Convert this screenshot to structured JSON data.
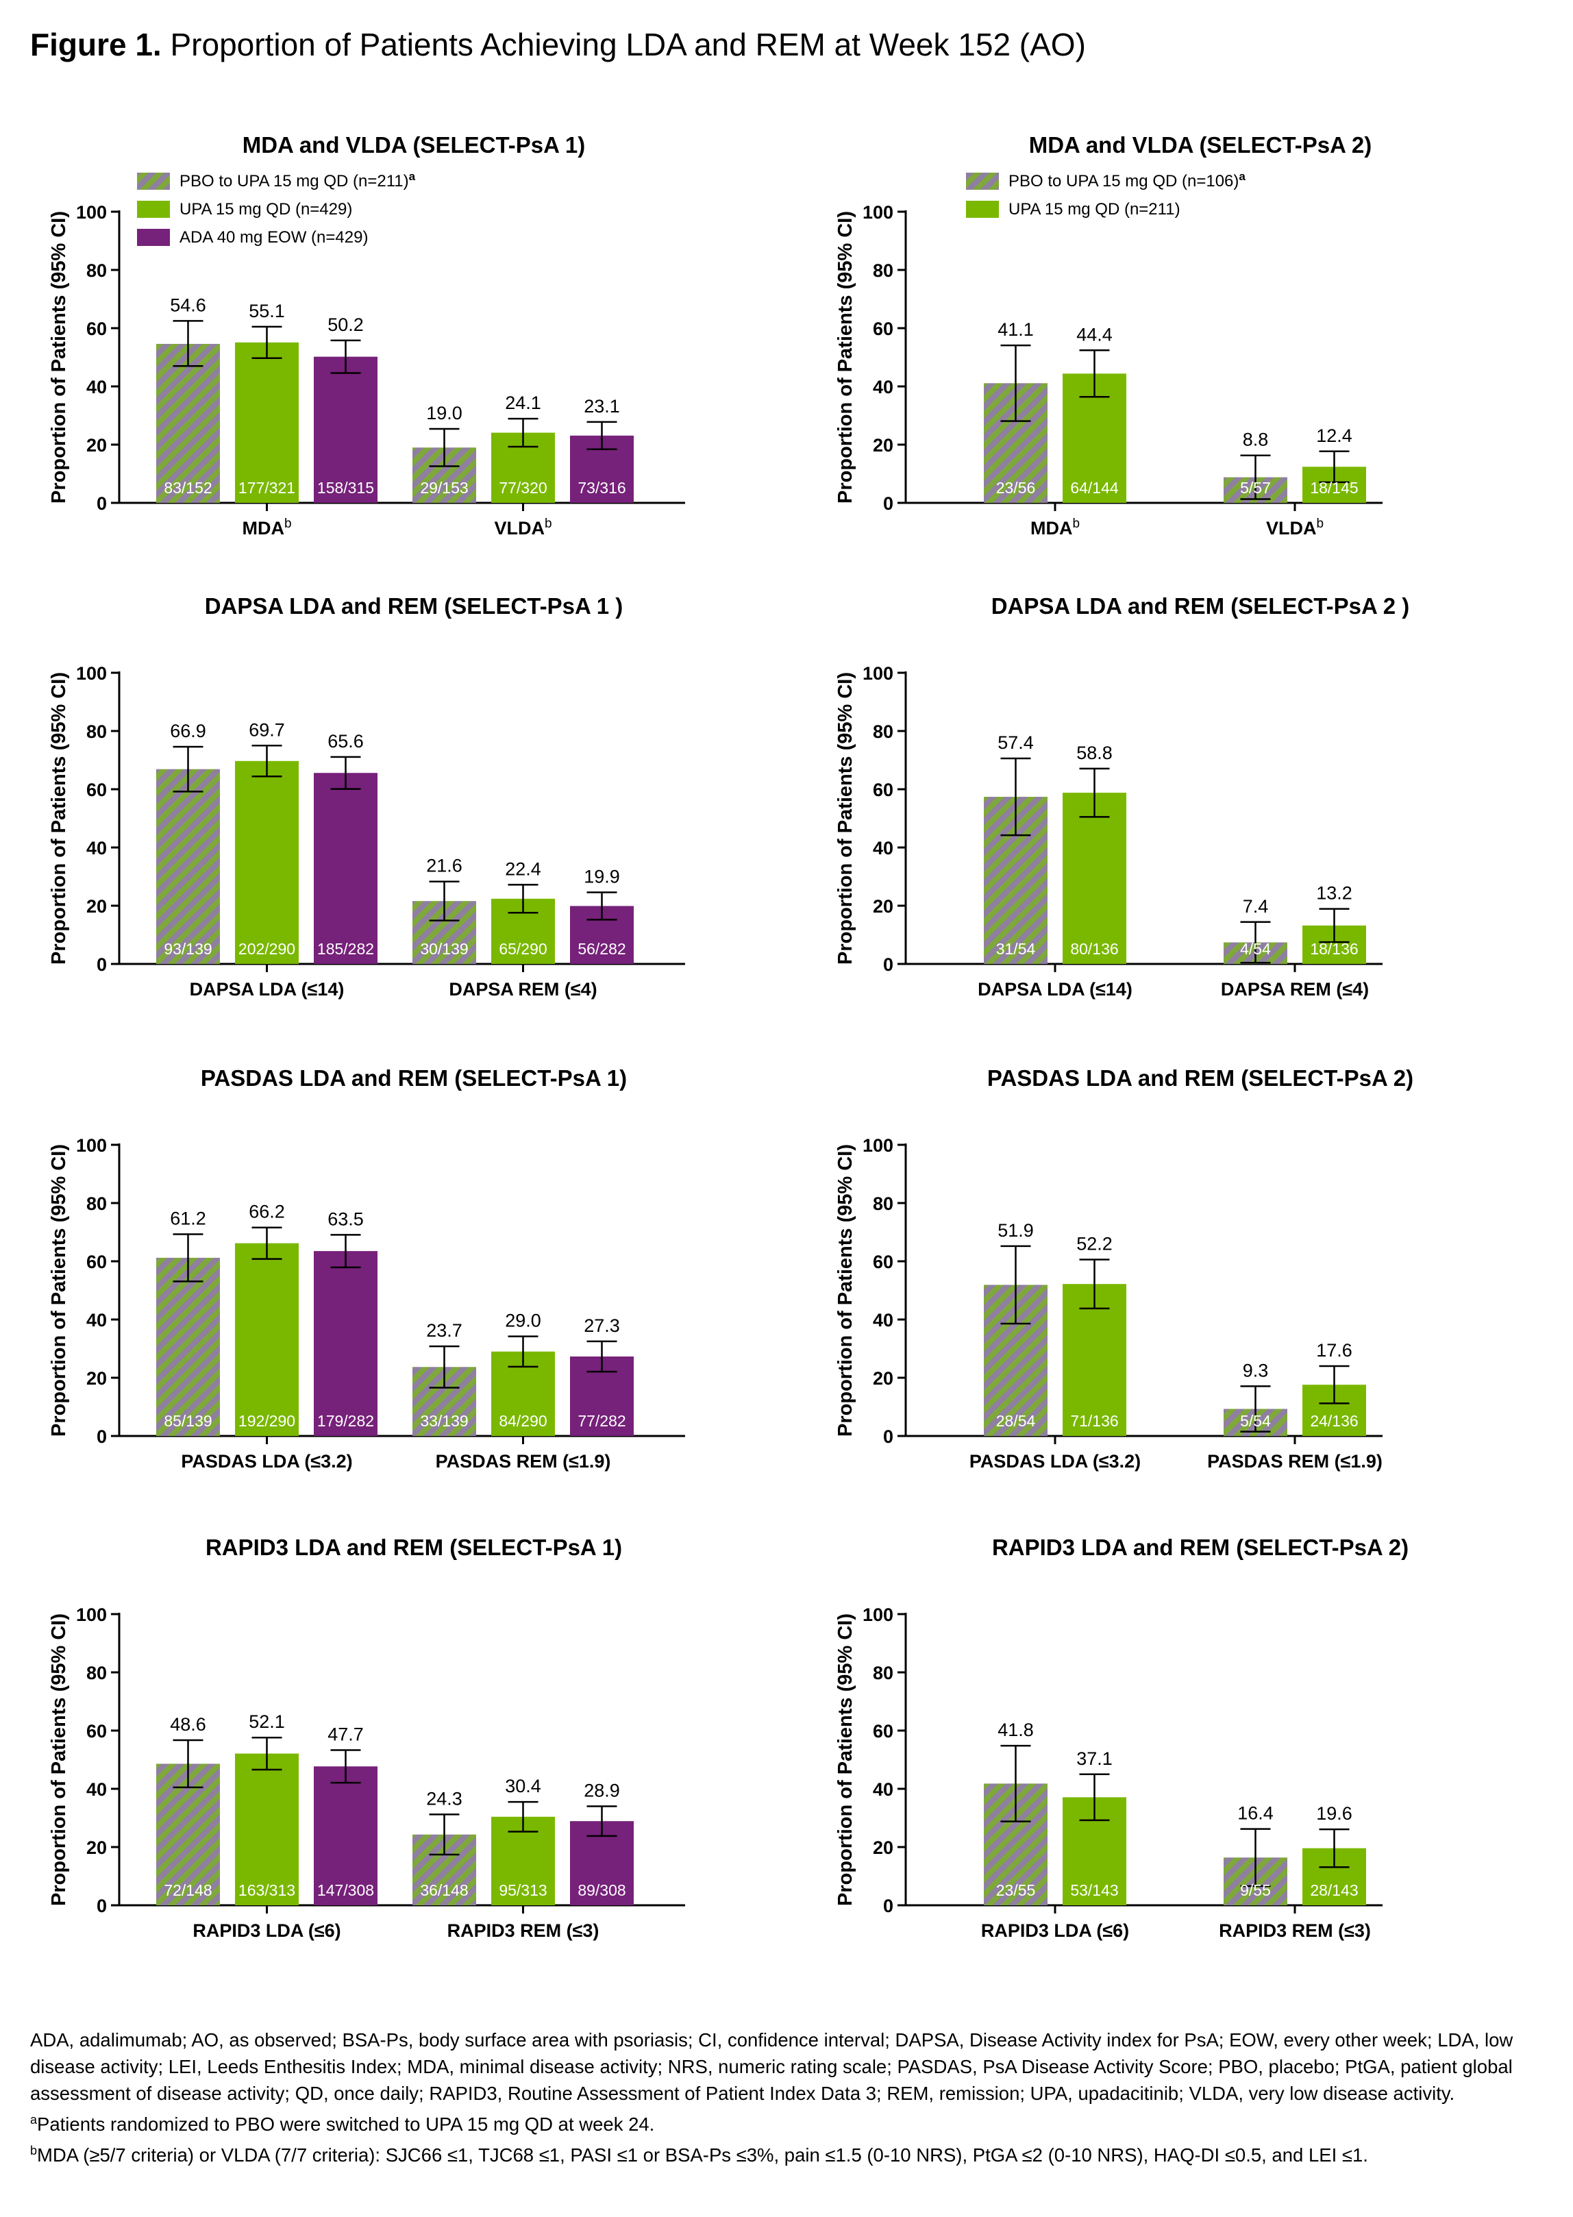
{
  "figure": {
    "title_bold": "Figure 1.",
    "title_rest": " Proportion of Patients Achieving LDA and REM at Week 152 (AO)"
  },
  "colors": {
    "pbo_hatch_a": "#7fa83a",
    "pbo_hatch_b": "#8f7fa0",
    "upa": "#7ab800",
    "ada": "#76217a",
    "axis": "#000000",
    "bar_label_text": "#ffffff"
  },
  "legend_sets": {
    "psa1": [
      {
        "series": "pbo",
        "text": "PBO to UPA 15 mg QD (n=211)",
        "sup": "a"
      },
      {
        "series": "upa",
        "text": "UPA 15 mg QD (n=429)",
        "sup": ""
      },
      {
        "series": "ada",
        "text": "ADA 40 mg EOW (n=429)",
        "sup": ""
      }
    ],
    "psa2": [
      {
        "series": "pbo",
        "text": "PBO to UPA 15 mg QD (n=106)",
        "sup": "a"
      },
      {
        "series": "upa",
        "text": "UPA 15 mg QD (n=211)",
        "sup": ""
      }
    ]
  },
  "chart_data": [
    {
      "type": "bar",
      "title": "MDA and VLDA (SELECT-PsA 1)",
      "ylabel": "Proportion of Patients (95% CI)",
      "ylim": [
        0,
        100
      ],
      "yticks": [
        0,
        20,
        40,
        60,
        80,
        100
      ],
      "legend": "psa1",
      "legend_position": "top-left",
      "groups": [
        {
          "label": "MDA",
          "sup": "b",
          "bars": [
            {
              "series": "pbo",
              "value": 54.6,
              "ci": [
                47,
                62.5
              ],
              "n_label": "83/152"
            },
            {
              "series": "upa",
              "value": 55.1,
              "ci": [
                49.7,
                60.5
              ],
              "n_label": "177/321"
            },
            {
              "series": "ada",
              "value": 50.2,
              "ci": [
                44.6,
                55.8
              ],
              "n_label": "158/315"
            }
          ]
        },
        {
          "label": "VLDA",
          "sup": "b",
          "bars": [
            {
              "series": "pbo",
              "value": 19.0,
              "ci": [
                12.6,
                25.4
              ],
              "n_label": "29/153"
            },
            {
              "series": "upa",
              "value": 24.1,
              "ci": [
                19.3,
                28.9
              ],
              "n_label": "77/320"
            },
            {
              "series": "ada",
              "value": 23.1,
              "ci": [
                18.4,
                27.8
              ],
              "n_label": "73/316"
            }
          ]
        }
      ]
    },
    {
      "type": "bar",
      "title": "MDA and VLDA (SELECT-PsA 2)",
      "ylabel": "Proportion of Patients (95% CI)",
      "ylim": [
        0,
        100
      ],
      "yticks": [
        0,
        20,
        40,
        60,
        80,
        100
      ],
      "legend": "psa2",
      "legend_position": "top-left",
      "groups": [
        {
          "label": "MDA",
          "sup": "b",
          "bars": [
            {
              "series": "pbo",
              "value": 41.1,
              "ci": [
                28.1,
                54.1
              ],
              "n_label": "23/56"
            },
            {
              "series": "upa",
              "value": 44.4,
              "ci": [
                36.4,
                52.4
              ],
              "n_label": "64/144"
            }
          ]
        },
        {
          "label": "VLDA",
          "sup": "b",
          "bars": [
            {
              "series": "pbo",
              "value": 8.8,
              "ci": [
                1.3,
                16.3
              ],
              "n_label": "5/57"
            },
            {
              "series": "upa",
              "value": 12.4,
              "ci": [
                7.1,
                17.7
              ],
              "n_label": "18/145"
            }
          ]
        }
      ]
    },
    {
      "type": "bar",
      "title": "DAPSA LDA and REM (SELECT-PsA 1 )",
      "ylabel": "Proportion of Patients (95% CI)",
      "ylim": [
        0,
        100
      ],
      "yticks": [
        0,
        20,
        40,
        60,
        80,
        100
      ],
      "groups": [
        {
          "label": "DAPSA LDA (≤14)",
          "sup": "",
          "bars": [
            {
              "series": "pbo",
              "value": 66.9,
              "ci": [
                59.2,
                74.6
              ],
              "n_label": "93/139"
            },
            {
              "series": "upa",
              "value": 69.7,
              "ci": [
                64.4,
                75
              ],
              "n_label": "202/290"
            },
            {
              "series": "ada",
              "value": 65.6,
              "ci": [
                60.1,
                71.1
              ],
              "n_label": "185/282"
            }
          ]
        },
        {
          "label": "DAPSA REM (≤4)",
          "sup": "",
          "bars": [
            {
              "series": "pbo",
              "value": 21.6,
              "ci": [
                14.9,
                28.3
              ],
              "n_label": "30/139"
            },
            {
              "series": "upa",
              "value": 22.4,
              "ci": [
                17.6,
                27.2
              ],
              "n_label": "65/290"
            },
            {
              "series": "ada",
              "value": 19.9,
              "ci": [
                15.2,
                24.6
              ],
              "n_label": "56/282"
            }
          ]
        }
      ]
    },
    {
      "type": "bar",
      "title": "DAPSA LDA and REM (SELECT-PsA 2 )",
      "ylabel": "Proportion of Patients (95% CI)",
      "ylim": [
        0,
        100
      ],
      "yticks": [
        0,
        20,
        40,
        60,
        80,
        100
      ],
      "groups": [
        {
          "label": "DAPSA LDA (≤14)",
          "sup": "",
          "bars": [
            {
              "series": "pbo",
              "value": 57.4,
              "ci": [
                44.2,
                70.6
              ],
              "n_label": "31/54"
            },
            {
              "series": "upa",
              "value": 58.8,
              "ci": [
                50.5,
                67.1
              ],
              "n_label": "80/136"
            }
          ]
        },
        {
          "label": "DAPSA REM (≤4)",
          "sup": "",
          "bars": [
            {
              "series": "pbo",
              "value": 7.4,
              "ci": [
                0.4,
                14.4
              ],
              "n_label": "4/54"
            },
            {
              "series": "upa",
              "value": 13.2,
              "ci": [
                7.5,
                18.9
              ],
              "n_label": "18/136"
            }
          ]
        }
      ]
    },
    {
      "type": "bar",
      "title": "PASDAS LDA and REM (SELECT-PsA 1)",
      "ylabel": "Proportion of Patients (95% CI)",
      "ylim": [
        0,
        100
      ],
      "yticks": [
        0,
        20,
        40,
        60,
        80,
        100
      ],
      "groups": [
        {
          "label": "PASDAS LDA (≤3.2)",
          "sup": "",
          "bars": [
            {
              "series": "pbo",
              "value": 61.2,
              "ci": [
                53.1,
                69.3
              ],
              "n_label": "85/139"
            },
            {
              "series": "upa",
              "value": 66.2,
              "ci": [
                60.8,
                71.6
              ],
              "n_label": "192/290"
            },
            {
              "series": "ada",
              "value": 63.5,
              "ci": [
                57.9,
                69.1
              ],
              "n_label": "179/282"
            }
          ]
        },
        {
          "label": "PASDAS REM (≤1.9)",
          "sup": "",
          "bars": [
            {
              "series": "pbo",
              "value": 23.7,
              "ci": [
                16.6,
                30.8
              ],
              "n_label": "33/139"
            },
            {
              "series": "upa",
              "value": 29.0,
              "ci": [
                23.8,
                34.2
              ],
              "n_label": "84/290"
            },
            {
              "series": "ada",
              "value": 27.3,
              "ci": [
                22.1,
                32.5
              ],
              "n_label": "77/282"
            }
          ]
        }
      ]
    },
    {
      "type": "bar",
      "title": "PASDAS LDA and REM (SELECT-PsA 2)",
      "ylabel": "Proportion of Patients (95% CI)",
      "ylim": [
        0,
        100
      ],
      "yticks": [
        0,
        20,
        40,
        60,
        80,
        100
      ],
      "groups": [
        {
          "label": "PASDAS LDA (≤3.2)",
          "sup": "",
          "bars": [
            {
              "series": "pbo",
              "value": 51.9,
              "ci": [
                38.6,
                65.2
              ],
              "n_label": "28/54"
            },
            {
              "series": "upa",
              "value": 52.2,
              "ci": [
                43.8,
                60.6
              ],
              "n_label": "71/136"
            }
          ]
        },
        {
          "label": "PASDAS REM (≤1.9)",
          "sup": "",
          "bars": [
            {
              "series": "pbo",
              "value": 9.3,
              "ci": [
                1.5,
                17.1
              ],
              "n_label": "5/54"
            },
            {
              "series": "upa",
              "value": 17.6,
              "ci": [
                11.2,
                24
              ],
              "n_label": "24/136"
            }
          ]
        }
      ]
    },
    {
      "type": "bar",
      "title": "RAPID3 LDA and REM (SELECT-PsA 1)",
      "ylabel": "Proportion of Patients (95% CI)",
      "ylim": [
        0,
        100
      ],
      "yticks": [
        0,
        20,
        40,
        60,
        80,
        100
      ],
      "groups": [
        {
          "label": "RAPID3 LDA (≤6)",
          "sup": "",
          "bars": [
            {
              "series": "pbo",
              "value": 48.6,
              "ci": [
                40.5,
                56.7
              ],
              "n_label": "72/148"
            },
            {
              "series": "upa",
              "value": 52.1,
              "ci": [
                46.6,
                57.6
              ],
              "n_label": "163/313"
            },
            {
              "series": "ada",
              "value": 47.7,
              "ci": [
                42.1,
                53.3
              ],
              "n_label": "147/308"
            }
          ]
        },
        {
          "label": "RAPID3 REM (≤3)",
          "sup": "",
          "bars": [
            {
              "series": "pbo",
              "value": 24.3,
              "ci": [
                17.4,
                31.2
              ],
              "n_label": "36/148"
            },
            {
              "series": "upa",
              "value": 30.4,
              "ci": [
                25.3,
                35.5
              ],
              "n_label": "95/313"
            },
            {
              "series": "ada",
              "value": 28.9,
              "ci": [
                23.8,
                34
              ],
              "n_label": "89/308"
            }
          ]
        }
      ]
    },
    {
      "type": "bar",
      "title": "RAPID3 LDA and REM (SELECT-PsA 2)",
      "ylabel": "Proportion of Patients (95% CI)",
      "ylim": [
        0,
        100
      ],
      "yticks": [
        0,
        20,
        40,
        60,
        80,
        100
      ],
      "groups": [
        {
          "label": "RAPID3 LDA (≤6)",
          "sup": "",
          "bars": [
            {
              "series": "pbo",
              "value": 41.8,
              "ci": [
                28.8,
                54.8
              ],
              "n_label": "23/55"
            },
            {
              "series": "upa",
              "value": 37.1,
              "ci": [
                29.2,
                45
              ],
              "n_label": "53/143"
            }
          ]
        },
        {
          "label": "RAPID3 REM (≤3)",
          "sup": "",
          "bars": [
            {
              "series": "pbo",
              "value": 16.4,
              "ci": [
                6.6,
                26.2
              ],
              "n_label": "9/55"
            },
            {
              "series": "upa",
              "value": 19.6,
              "ci": [
                13.1,
                26.1
              ],
              "n_label": "28/143"
            }
          ]
        }
      ]
    }
  ],
  "footnotes": {
    "abbreviations": "ADA, adalimumab; AO, as observed; BSA-Ps, body surface area with psoriasis; CI, confidence interval; DAPSA, Disease Activity index for PsA; EOW, every other week; LDA, low disease activity; LEI, Leeds Enthesitis Index; MDA, minimal disease activity; NRS, numeric rating scale; PASDAS, PsA Disease Activity Score; PBO, placebo; PtGA, patient global assessment of disease activity; QD, once daily; RAPID3, Routine Assessment of Patient Index Data 3; REM, remission; UPA, upadacitinib; VLDA, very low disease activity.",
    "note_a_marker": "a",
    "note_a": "Patients randomized to PBO were switched to UPA 15 mg QD at week 24.",
    "note_b_marker": "b",
    "note_b": "MDA (≥5/7 criteria) or VLDA (7/7 criteria): SJC66 ≤1, TJC68 ≤1, PASI ≤1 or BSA-Ps ≤3%, pain ≤1.5 (0-10 NRS), PtGA ≤2 (0-10 NRS), HAQ-DI ≤0.5, and LEI ≤1."
  }
}
